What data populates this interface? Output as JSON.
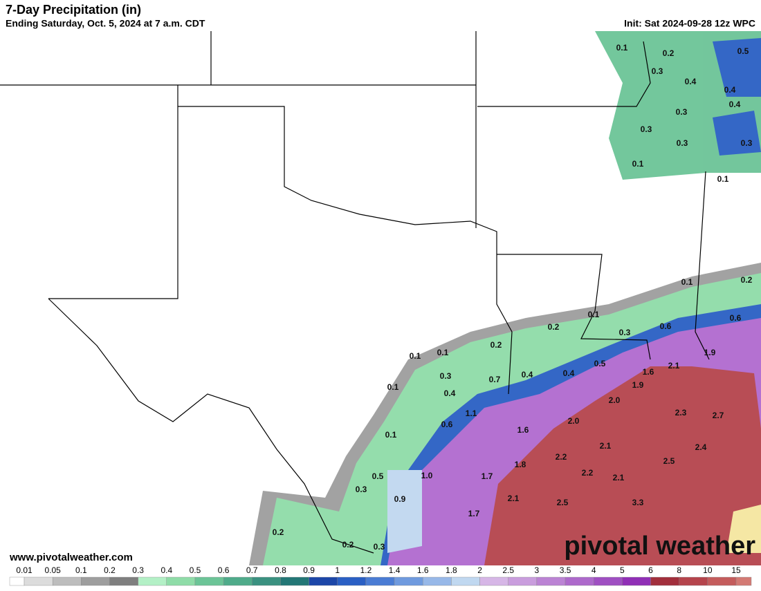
{
  "header": {
    "title": "7-Day Precipitation (in)",
    "subtitle": "Ending Saturday, Oct. 5, 2024 at 7 a.m. CDT",
    "init": "Init: Sat 2024-09-28 12z WPC"
  },
  "map_labels": [
    "0.1",
    "0.2",
    "0.5",
    "0.3",
    "0.4",
    "0.4",
    "0.4",
    "0.3",
    "0.3",
    "0.3",
    "0.3",
    "0.1",
    "0.1",
    "0.1",
    "0.2",
    "0.1",
    "0.2",
    "0.6",
    "0.6",
    "0.3",
    "0.2",
    "0.1",
    "0.1",
    "1.9",
    "2.1",
    "0.5",
    "1.6",
    "0.3",
    "0.7",
    "0.4",
    "0.4",
    "1.9",
    "0.1",
    "0.4",
    "2.0",
    "2.3",
    "2.7",
    "1.1",
    "2.0",
    "0.6",
    "1.6",
    "0.1",
    "2.1",
    "2.4",
    "2.2",
    "1.8",
    "2.5",
    "2.2",
    "2.1",
    "1.0",
    "1.7",
    "0.5",
    "0.3",
    "2.1",
    "2.5",
    "3.3",
    "0.9",
    "1.7",
    "0.2",
    "0.2",
    "0.3"
  ],
  "website": "www.pivotalweather.com",
  "watermark": "pivotal weather",
  "colorbar": {
    "labels": [
      "0.01",
      "0.05",
      "0.1",
      "0.2",
      "0.3",
      "0.4",
      "0.5",
      "0.6",
      "0.7",
      "0.8",
      "0.9",
      "1",
      "1.2",
      "1.4",
      "1.6",
      "1.8",
      "2",
      "2.5",
      "3",
      "3.5",
      "4",
      "5",
      "6",
      "8",
      "10",
      "15"
    ],
    "colors": [
      "#ffffff",
      "#dcdcdc",
      "#bdbdbd",
      "#9e9e9e",
      "#7f7f7f",
      "#b3f0c6",
      "#8fdca8",
      "#6cc497",
      "#4fab8a",
      "#3a9180",
      "#237776",
      "#1c46a8",
      "#2a5fc4",
      "#4a7cd4",
      "#6f9ade",
      "#97b8e8",
      "#c0d8f0",
      "#d6b6e6",
      "#c99ddd",
      "#bb83d4",
      "#ad69cb",
      "#9f4fc2",
      "#902fb6",
      "#a22f3c",
      "#b5444c",
      "#c45c5c",
      "#d37a74"
    ]
  }
}
